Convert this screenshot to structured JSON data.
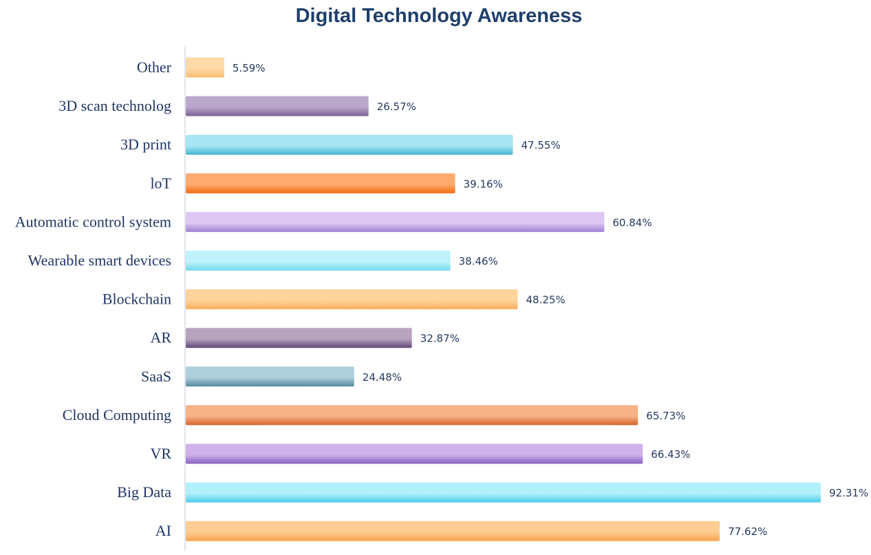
{
  "chart_data": {
    "type": "bar",
    "orientation": "horizontal",
    "title": "Digital Technology Awareness",
    "xlabel": "",
    "ylabel": "",
    "xlim": [
      0,
      100
    ],
    "grid": false,
    "legend": "none",
    "value_suffix": "%",
    "categories": [
      "Other",
      "3D scan technolog",
      "3D print",
      "loT",
      "Automatic control system",
      "Wearable smart devices",
      "Blockchain",
      "AR",
      "SaaS",
      "Cloud Computing",
      "VR",
      "Big Data",
      "AI"
    ],
    "values": [
      5.59,
      26.57,
      47.55,
      39.16,
      60.84,
      38.46,
      48.25,
      32.87,
      24.48,
      65.73,
      66.43,
      92.31,
      77.62
    ],
    "labels": [
      "5.59%",
      "26.57%",
      "47.55%",
      "39.16%",
      "60.84%",
      "38.46%",
      "48.25%",
      "32.87%",
      "24.48%",
      "65.73%",
      "66.43%",
      "92.31%",
      "77.62%"
    ],
    "bar_colors": [
      [
        "#ffd9a8",
        "#f8bd72"
      ],
      [
        "#bba7cc",
        "#7d6294"
      ],
      [
        "#a8e6f5",
        "#44b4d0"
      ],
      [
        "#ffab6f",
        "#f26a0c"
      ],
      [
        "#ddc7f3",
        "#9f7fd4"
      ],
      [
        "#bff3fb",
        "#74d8ee"
      ],
      [
        "#ffd49b",
        "#f8ae5e"
      ],
      [
        "#b8a4bf",
        "#5f4877"
      ],
      [
        "#aed0dc",
        "#53889d"
      ],
      [
        "#f7b287",
        "#d6652a"
      ],
      [
        "#cfb2ea",
        "#8961c0"
      ],
      [
        "#b2f0fb",
        "#4ccbe8"
      ],
      [
        "#ffcd92",
        "#f7a24c"
      ]
    ]
  }
}
